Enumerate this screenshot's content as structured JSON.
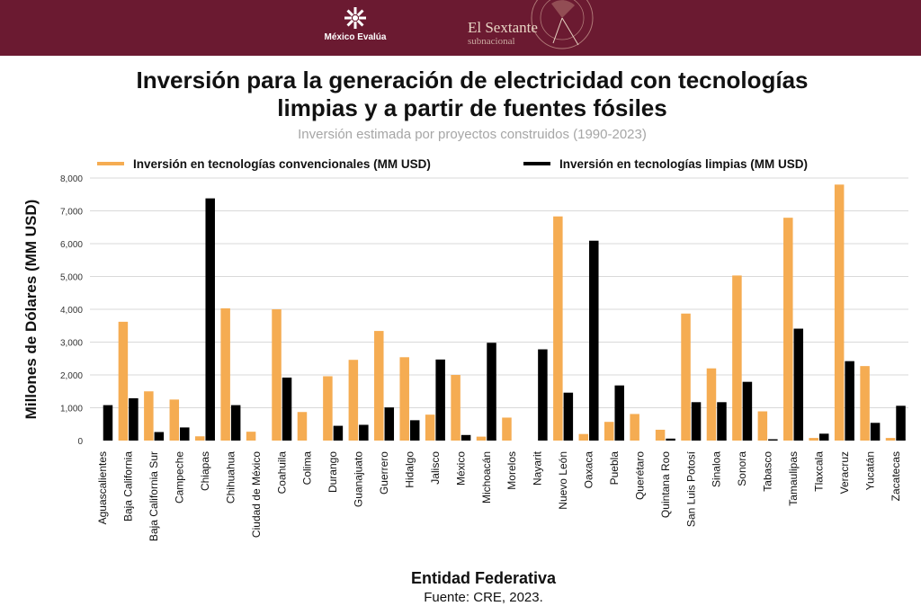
{
  "header": {
    "brand1": "México Evalúa",
    "brand2_line1": "El Sextante",
    "brand2_line2": "subnacional",
    "background": "#6b1a31"
  },
  "title_line1": "Inversión para la generación de electricidad con tecnologías",
  "title_line2": "limpias y a partir de fuentes fósiles",
  "subtitle": "Inversión estimada por proyectos construidos (1990-2023)",
  "x_title": "Entidad Federativa",
  "source": "Fuente: CRE, 2023.",
  "chart_data": {
    "type": "bar",
    "ylabel": "Millones de Dólares (MM USD)",
    "xlabel": "Entidad Federativa",
    "ylim": [
      0,
      8000
    ],
    "yticks": [
      0,
      1000,
      2000,
      3000,
      4000,
      5000,
      6000,
      7000,
      8000
    ],
    "ytick_labels": [
      "0",
      "1,000",
      "2,000",
      "3,000",
      "4,000",
      "5,000",
      "6,000",
      "7,000",
      "8,000"
    ],
    "grid": "horizontal",
    "legend_position": "top",
    "categories": [
      "Aguascalientes",
      "Baja California",
      "Baja California Sur",
      "Campeche",
      "Chiapas",
      "Chihuahua",
      "Ciudad de México",
      "Coahuila",
      "Colima",
      "Durango",
      "Guanajuato",
      "Guerrero",
      "Hidalgo",
      "Jalisco",
      "México",
      "Michoacán",
      "Morelos",
      "Nayarit",
      "Nuevo León",
      "Oaxaca",
      "Puebla",
      "Querétaro",
      "Quintana Roo",
      "San Luis Potosí",
      "Sinaloa",
      "Sonora",
      "Tabasco",
      "Tamaulipas",
      "Tlaxcala",
      "Veracruz",
      "Yucatán",
      "Zacatecas"
    ],
    "series": [
      {
        "name": "Inversión en tecnologías convencionales (MM USD)",
        "color": "#f5ac52",
        "values": [
          0,
          3620,
          1500,
          1250,
          130,
          4030,
          270,
          4000,
          870,
          1960,
          2460,
          3340,
          2540,
          790,
          2000,
          120,
          700,
          0,
          6830,
          200,
          570,
          810,
          330,
          3870,
          2200,
          5030,
          890,
          6790,
          80,
          7800,
          2270,
          80
        ]
      },
      {
        "name": "Inversión en tecnologías limpias (MM USD)",
        "color": "#000000",
        "values": [
          1080,
          1290,
          260,
          400,
          7380,
          1080,
          0,
          1920,
          0,
          450,
          480,
          1010,
          620,
          2470,
          170,
          2980,
          0,
          2780,
          1460,
          6090,
          1680,
          0,
          60,
          1170,
          1170,
          1790,
          40,
          3410,
          210,
          2420,
          540,
          1060
        ]
      }
    ]
  }
}
